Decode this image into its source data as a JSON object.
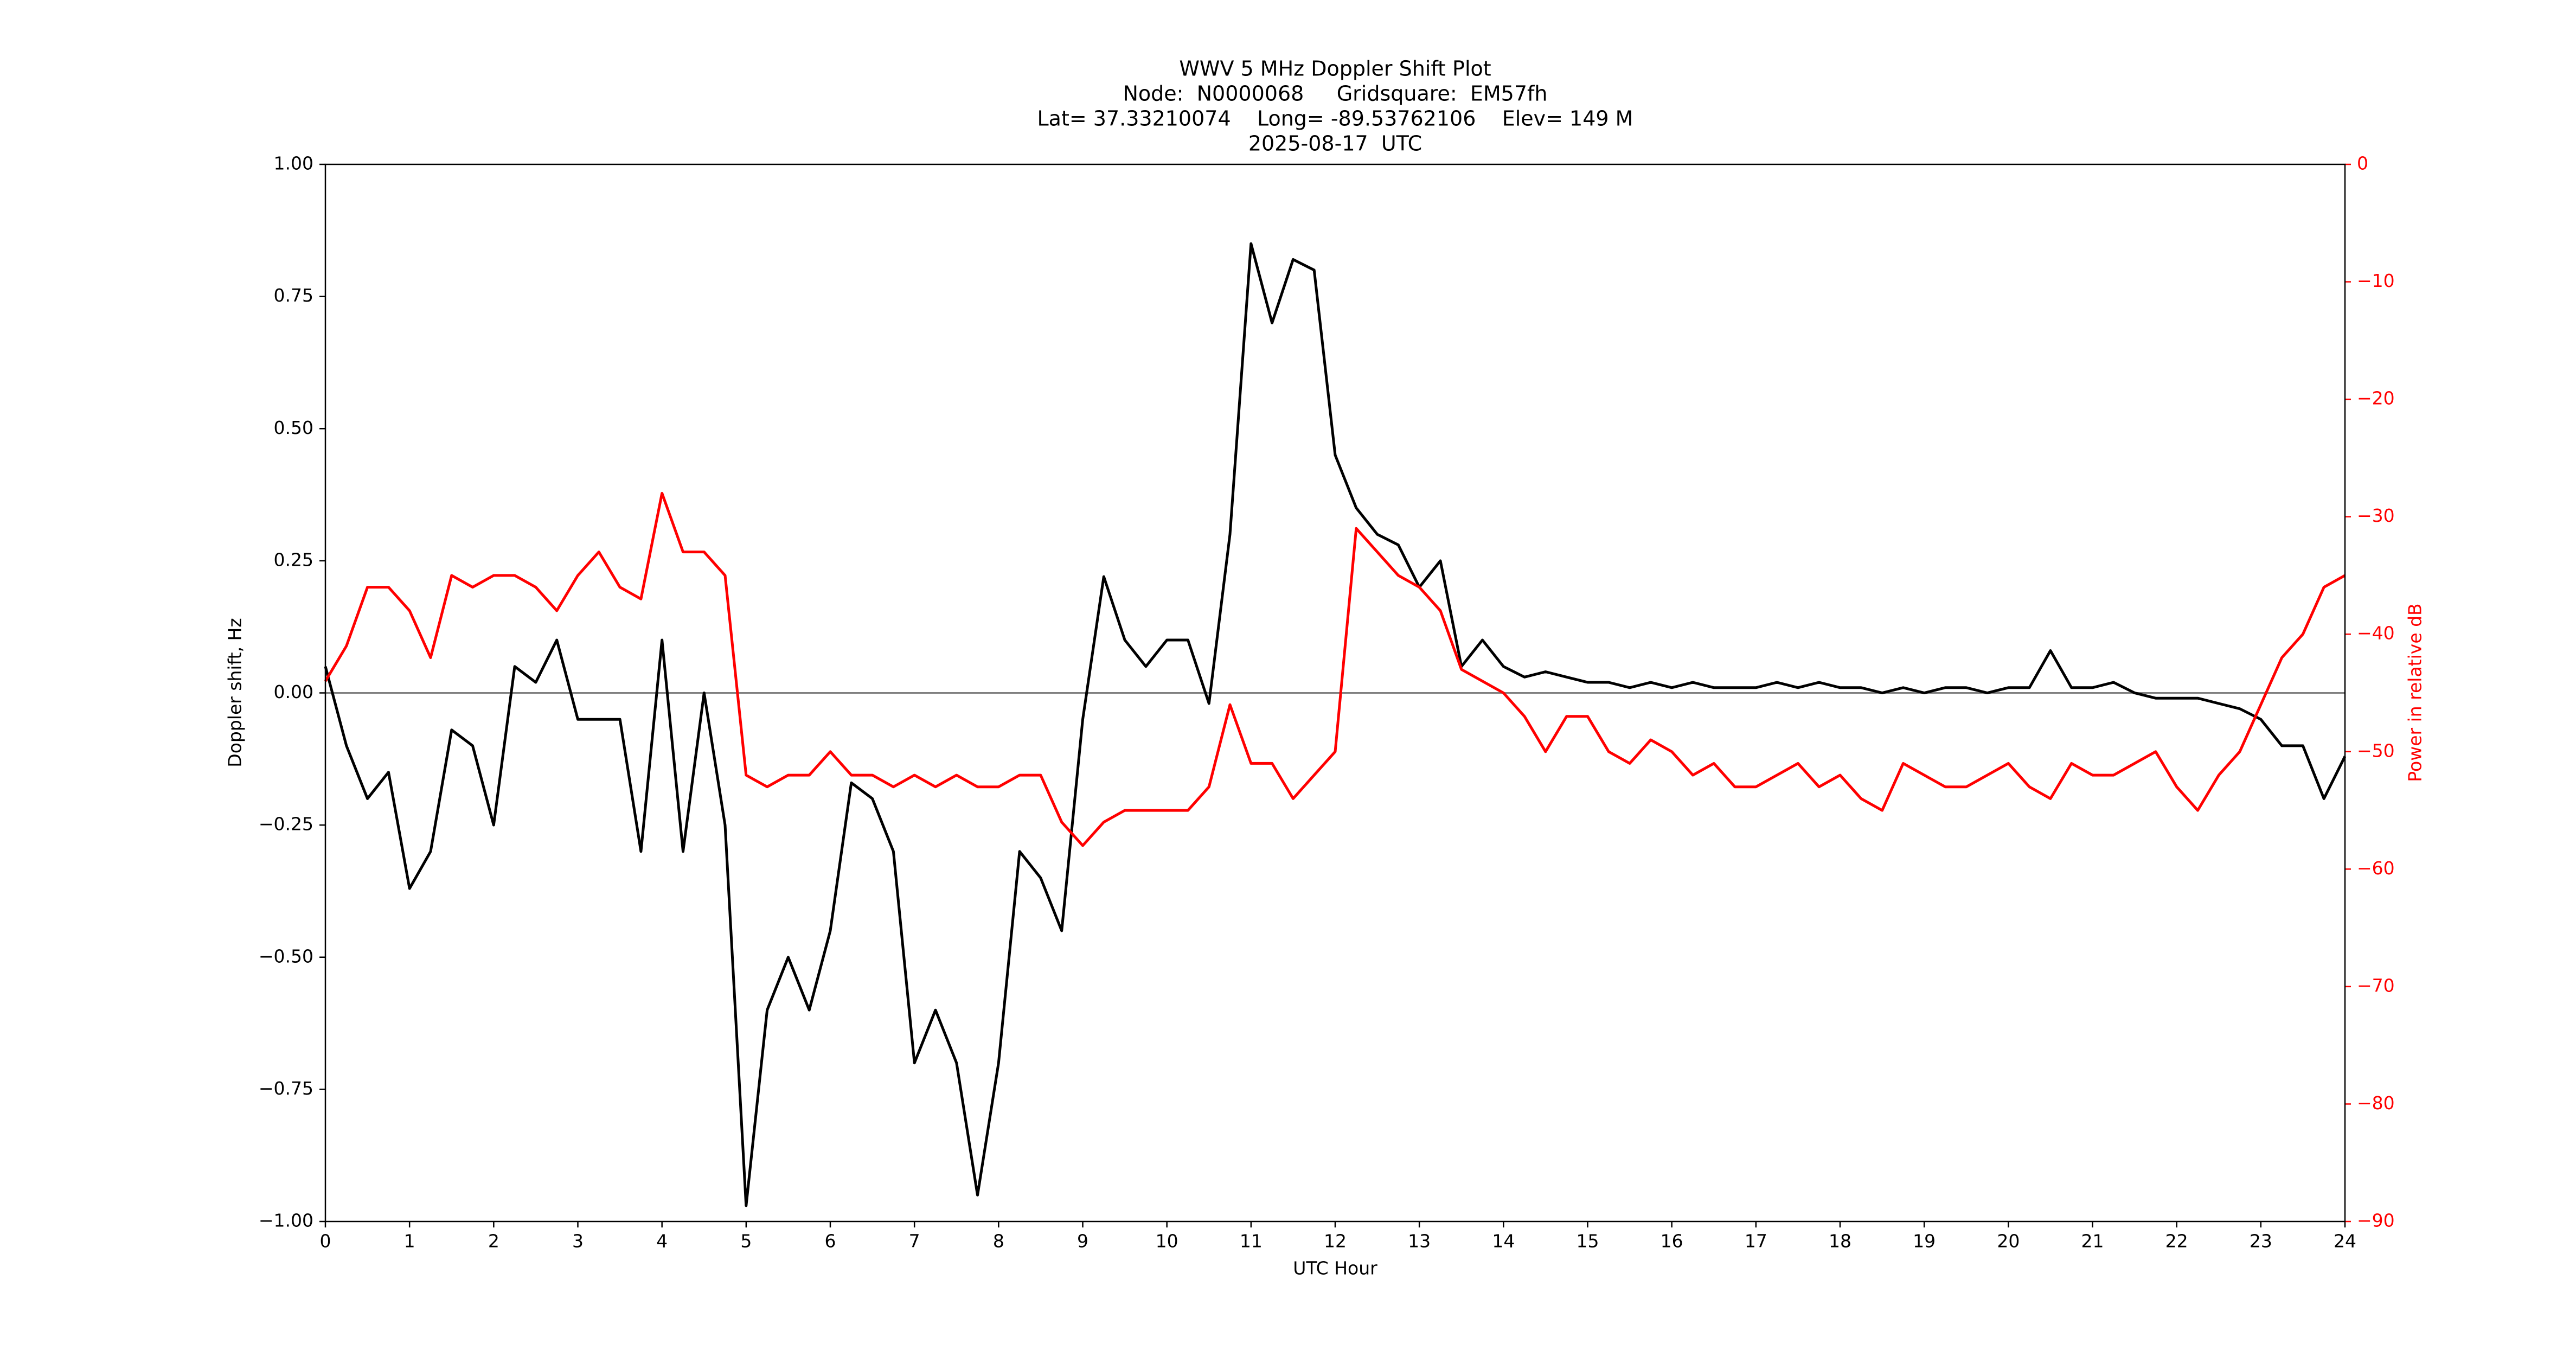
{
  "chart_data": {
    "type": "line",
    "title": [
      "WWV 5 MHz Doppler Shift Plot",
      "Node:  N0000068     Gridsquare:  EM57fh",
      "Lat= 37.33210074    Long= -89.53762106    Elev= 149 M",
      "2025-08-17  UTC"
    ],
    "xlabel": "UTC Hour",
    "ylabel": "Doppler shift, Hz",
    "y2label": "Power in relative dB",
    "x": [
      0,
      0.25,
      0.5,
      0.75,
      1,
      1.25,
      1.5,
      1.75,
      2,
      2.25,
      2.5,
      2.75,
      3,
      3.25,
      3.5,
      3.75,
      4,
      4.25,
      4.5,
      4.75,
      5,
      5.25,
      5.5,
      5.75,
      6,
      6.25,
      6.5,
      6.75,
      7,
      7.25,
      7.5,
      7.75,
      8,
      8.25,
      8.5,
      8.75,
      9,
      9.25,
      9.5,
      9.75,
      10,
      10.25,
      10.5,
      10.75,
      11,
      11.25,
      11.5,
      11.75,
      12,
      12.25,
      12.5,
      12.75,
      13,
      13.25,
      13.5,
      13.75,
      14,
      14.25,
      14.5,
      14.75,
      15,
      15.25,
      15.5,
      15.75,
      16,
      16.25,
      16.5,
      16.75,
      17,
      17.25,
      17.5,
      17.75,
      18,
      18.25,
      18.5,
      18.75,
      19,
      19.25,
      19.5,
      19.75,
      20,
      20.25,
      20.5,
      20.75,
      21,
      21.25,
      21.5,
      21.75,
      22,
      22.25,
      22.5,
      22.75,
      23,
      23.25,
      23.5,
      23.75,
      24
    ],
    "series": [
      {
        "color": "#000000",
        "axis": "y",
        "values": [
          0.05,
          -0.1,
          -0.2,
          -0.15,
          -0.37,
          -0.3,
          -0.07,
          -0.1,
          -0.25,
          0.05,
          0.02,
          0.1,
          -0.05,
          -0.05,
          -0.05,
          -0.3,
          0.1,
          -0.3,
          0.0,
          -0.25,
          -0.97,
          -0.6,
          -0.5,
          -0.6,
          -0.45,
          -0.17,
          -0.2,
          -0.3,
          -0.7,
          -0.6,
          -0.7,
          -0.95,
          -0.7,
          -0.3,
          -0.35,
          -0.45,
          -0.05,
          0.22,
          0.1,
          0.05,
          0.1,
          0.1,
          -0.02,
          0.3,
          0.85,
          0.7,
          0.82,
          0.8,
          0.45,
          0.35,
          0.3,
          0.28,
          0.2,
          0.25,
          0.05,
          0.1,
          0.05,
          0.03,
          0.04,
          0.03,
          0.02,
          0.02,
          0.01,
          0.02,
          0.01,
          0.02,
          0.01,
          0.01,
          0.01,
          0.02,
          0.01,
          0.02,
          0.01,
          0.01,
          0.0,
          0.01,
          0.0,
          0.01,
          0.01,
          0.0,
          0.01,
          0.01,
          0.08,
          0.01,
          0.01,
          0.02,
          0.0,
          -0.01,
          -0.01,
          -0.01,
          -0.02,
          -0.03,
          -0.05,
          -0.1,
          -0.1,
          -0.2,
          -0.12
        ]
      },
      {
        "color": "#ff0000",
        "axis": "y2",
        "values": [
          -44,
          -41,
          -36,
          -36,
          -38,
          -42,
          -35,
          -36,
          -35,
          -35,
          -36,
          -38,
          -35,
          -33,
          -36,
          -37,
          -28,
          -33,
          -33,
          -35,
          -52,
          -53,
          -52,
          -52,
          -50,
          -52,
          -52,
          -53,
          -52,
          -53,
          -52,
          -53,
          -53,
          -52,
          -52,
          -56,
          -58,
          -56,
          -55,
          -55,
          -55,
          -55,
          -53,
          -46,
          -51,
          -51,
          -54,
          -52,
          -50,
          -31,
          -33,
          -35,
          -36,
          -38,
          -43,
          -44,
          -45,
          -47,
          -50,
          -47,
          -47,
          -50,
          -51,
          -49,
          -50,
          -52,
          -51,
          -53,
          -53,
          -52,
          -51,
          -53,
          -52,
          -54,
          -55,
          -51,
          -52,
          -53,
          -53,
          -52,
          -51,
          -53,
          -54,
          -51,
          -52,
          -52,
          -51,
          -50,
          -53,
          -55,
          -52,
          -50,
          -46,
          -42,
          -40,
          -36,
          -35
        ]
      }
    ],
    "xlim": [
      0,
      24
    ],
    "xticks": [
      0,
      1,
      2,
      3,
      4,
      5,
      6,
      7,
      8,
      9,
      10,
      11,
      12,
      13,
      14,
      15,
      16,
      17,
      18,
      19,
      20,
      21,
      22,
      23,
      24
    ],
    "ylim": [
      -1,
      1
    ],
    "yticks": [
      {
        "value": -1,
        "label": "−1.00"
      },
      {
        "value": -0.75,
        "label": "−0.75"
      },
      {
        "value": -0.5,
        "label": "−0.50"
      },
      {
        "value": -0.25,
        "label": "−0.25"
      },
      {
        "value": 0,
        "label": "0.00"
      },
      {
        "value": 0.25,
        "label": "0.25"
      },
      {
        "value": 0.5,
        "label": "0.50"
      },
      {
        "value": 0.75,
        "label": "0.75"
      },
      {
        "value": 1,
        "label": "1.00"
      }
    ],
    "y2lim": [
      -90,
      0
    ],
    "y2ticks": [
      {
        "value": -90,
        "label": "−90"
      },
      {
        "value": -80,
        "label": "−80"
      },
      {
        "value": -70,
        "label": "−70"
      },
      {
        "value": -60,
        "label": "−60"
      },
      {
        "value": -50,
        "label": "−50"
      },
      {
        "value": -40,
        "label": "−40"
      },
      {
        "value": -30,
        "label": "−30"
      },
      {
        "value": -20,
        "label": "−20"
      },
      {
        "value": -10,
        "label": "−10"
      },
      0
    ],
    "y2color": "#ff0000",
    "reference_line": 0,
    "reference_color": "#808080"
  }
}
